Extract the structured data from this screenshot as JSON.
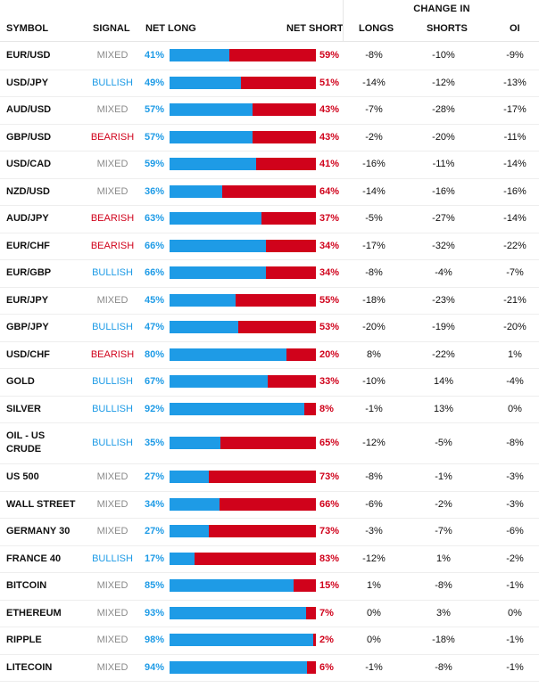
{
  "colors": {
    "long": "#1e9be6",
    "short": "#d0021b",
    "mixed": "#8a8a8a"
  },
  "headers": {
    "symbol": "SYMBOL",
    "signal": "SIGNAL",
    "net_long": "NET LONG",
    "net_short": "NET SHORT",
    "change_in": "CHANGE IN",
    "longs": "LONGS",
    "shorts": "SHORTS",
    "oi": "OI"
  },
  "rows": [
    {
      "symbol": "EUR/USD",
      "signal": "MIXED",
      "net_long_pct": 41,
      "net_long": "41%",
      "net_short": "59%",
      "longs": "-8%",
      "shorts": "-10%",
      "oi": "-9%"
    },
    {
      "symbol": "USD/JPY",
      "signal": "BULLISH",
      "net_long_pct": 49,
      "net_long": "49%",
      "net_short": "51%",
      "longs": "-14%",
      "shorts": "-12%",
      "oi": "-13%"
    },
    {
      "symbol": "AUD/USD",
      "signal": "MIXED",
      "net_long_pct": 57,
      "net_long": "57%",
      "net_short": "43%",
      "longs": "-7%",
      "shorts": "-28%",
      "oi": "-17%"
    },
    {
      "symbol": "GBP/USD",
      "signal": "BEARISH",
      "net_long_pct": 57,
      "net_long": "57%",
      "net_short": "43%",
      "longs": "-2%",
      "shorts": "-20%",
      "oi": "-11%"
    },
    {
      "symbol": "USD/CAD",
      "signal": "MIXED",
      "net_long_pct": 59,
      "net_long": "59%",
      "net_short": "41%",
      "longs": "-16%",
      "shorts": "-11%",
      "oi": "-14%"
    },
    {
      "symbol": "NZD/USD",
      "signal": "MIXED",
      "net_long_pct": 36,
      "net_long": "36%",
      "net_short": "64%",
      "longs": "-14%",
      "shorts": "-16%",
      "oi": "-16%"
    },
    {
      "symbol": "AUD/JPY",
      "signal": "BEARISH",
      "net_long_pct": 63,
      "net_long": "63%",
      "net_short": "37%",
      "longs": "-5%",
      "shorts": "-27%",
      "oi": "-14%"
    },
    {
      "symbol": "EUR/CHF",
      "signal": "BEARISH",
      "net_long_pct": 66,
      "net_long": "66%",
      "net_short": "34%",
      "longs": "-17%",
      "shorts": "-32%",
      "oi": "-22%"
    },
    {
      "symbol": "EUR/GBP",
      "signal": "BULLISH",
      "net_long_pct": 66,
      "net_long": "66%",
      "net_short": "34%",
      "longs": "-8%",
      "shorts": "-4%",
      "oi": "-7%"
    },
    {
      "symbol": "EUR/JPY",
      "signal": "MIXED",
      "net_long_pct": 45,
      "net_long": "45%",
      "net_short": "55%",
      "longs": "-18%",
      "shorts": "-23%",
      "oi": "-21%"
    },
    {
      "symbol": "GBP/JPY",
      "signal": "BULLISH",
      "net_long_pct": 47,
      "net_long": "47%",
      "net_short": "53%",
      "longs": "-20%",
      "shorts": "-19%",
      "oi": "-20%"
    },
    {
      "symbol": "USD/CHF",
      "signal": "BEARISH",
      "net_long_pct": 80,
      "net_long": "80%",
      "net_short": "20%",
      "longs": "8%",
      "shorts": "-22%",
      "oi": "1%"
    },
    {
      "symbol": "GOLD",
      "signal": "BULLISH",
      "net_long_pct": 67,
      "net_long": "67%",
      "net_short": "33%",
      "longs": "-10%",
      "shorts": "14%",
      "oi": "-4%"
    },
    {
      "symbol": "SILVER",
      "signal": "BULLISH",
      "net_long_pct": 92,
      "net_long": "92%",
      "net_short": "8%",
      "longs": "-1%",
      "shorts": "13%",
      "oi": "0%"
    },
    {
      "symbol": "OIL - US CRUDE",
      "symbol_lines": [
        "OIL - US",
        "CRUDE"
      ],
      "signal": "BULLISH",
      "net_long_pct": 35,
      "net_long": "35%",
      "net_short": "65%",
      "longs": "-12%",
      "shorts": "-5%",
      "oi": "-8%"
    },
    {
      "symbol": "US 500",
      "signal": "MIXED",
      "net_long_pct": 27,
      "net_long": "27%",
      "net_short": "73%",
      "longs": "-8%",
      "shorts": "-1%",
      "oi": "-3%"
    },
    {
      "symbol": "WALL STREET",
      "signal": "MIXED",
      "net_long_pct": 34,
      "net_long": "34%",
      "net_short": "66%",
      "longs": "-6%",
      "shorts": "-2%",
      "oi": "-3%"
    },
    {
      "symbol": "GERMANY 30",
      "signal": "MIXED",
      "net_long_pct": 27,
      "net_long": "27%",
      "net_short": "73%",
      "longs": "-3%",
      "shorts": "-7%",
      "oi": "-6%"
    },
    {
      "symbol": "FRANCE 40",
      "signal": "BULLISH",
      "net_long_pct": 17,
      "net_long": "17%",
      "net_short": "83%",
      "longs": "-12%",
      "shorts": "1%",
      "oi": "-2%"
    },
    {
      "symbol": "BITCOIN",
      "signal": "MIXED",
      "net_long_pct": 85,
      "net_long": "85%",
      "net_short": "15%",
      "longs": "1%",
      "shorts": "-8%",
      "oi": "-1%"
    },
    {
      "symbol": "ETHEREUM",
      "signal": "MIXED",
      "net_long_pct": 93,
      "net_long": "93%",
      "net_short": "7%",
      "longs": "0%",
      "shorts": "3%",
      "oi": "0%"
    },
    {
      "symbol": "RIPPLE",
      "signal": "MIXED",
      "net_long_pct": 98,
      "net_long": "98%",
      "net_short": "2%",
      "longs": "0%",
      "shorts": "-18%",
      "oi": "-1%"
    },
    {
      "symbol": "LITECOIN",
      "signal": "MIXED",
      "net_long_pct": 94,
      "net_long": "94%",
      "net_short": "6%",
      "longs": "-1%",
      "shorts": "-8%",
      "oi": "-1%"
    }
  ]
}
